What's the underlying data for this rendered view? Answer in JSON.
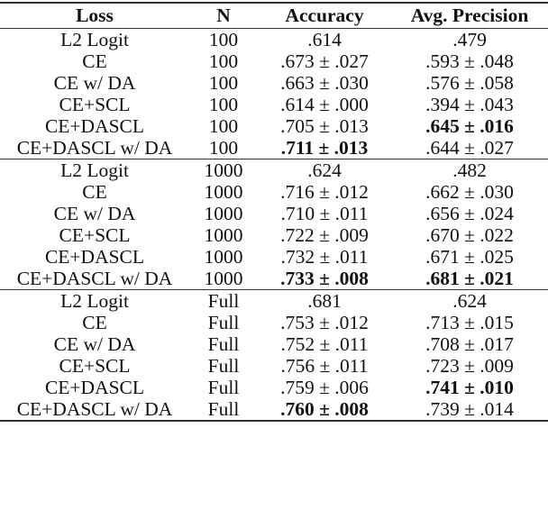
{
  "table": {
    "headers": [
      "Loss",
      "N",
      "Accuracy",
      "Avg. Precision"
    ],
    "sections": [
      {
        "rows": [
          {
            "loss": "L2 Logit",
            "n": "100",
            "acc": ".614",
            "ap": ".479",
            "acc_bold": false,
            "ap_bold": false
          },
          {
            "loss": "CE",
            "n": "100",
            "acc": ".673 ± .027",
            "ap": ".593 ± .048",
            "acc_bold": false,
            "ap_bold": false
          },
          {
            "loss": "CE w/ DA",
            "n": "100",
            "acc": ".663 ± .030",
            "ap": ".576 ± .058",
            "acc_bold": false,
            "ap_bold": false
          },
          {
            "loss": "CE+SCL",
            "n": "100",
            "acc": ".614 ± .000",
            "ap": ".394 ± .043",
            "acc_bold": false,
            "ap_bold": false
          },
          {
            "loss": "CE+DASCL",
            "n": "100",
            "acc": ".705 ± .013",
            "ap": ".645 ± .016",
            "acc_bold": false,
            "ap_bold": true
          },
          {
            "loss": "CE+DASCL w/ DA",
            "n": "100",
            "acc": ".711 ± .013",
            "ap": ".644 ± .027",
            "acc_bold": true,
            "ap_bold": false
          }
        ]
      },
      {
        "rows": [
          {
            "loss": "L2 Logit",
            "n": "1000",
            "acc": ".624",
            "ap": ".482",
            "acc_bold": false,
            "ap_bold": false
          },
          {
            "loss": "CE",
            "n": "1000",
            "acc": ".716 ± .012",
            "ap": ".662 ± .030",
            "acc_bold": false,
            "ap_bold": false
          },
          {
            "loss": "CE w/ DA",
            "n": "1000",
            "acc": ".710 ± .011",
            "ap": ".656 ± .024",
            "acc_bold": false,
            "ap_bold": false
          },
          {
            "loss": "CE+SCL",
            "n": "1000",
            "acc": ".722 ± .009",
            "ap": ".670 ± .022",
            "acc_bold": false,
            "ap_bold": false
          },
          {
            "loss": "CE+DASCL",
            "n": "1000",
            "acc": ".732 ± .011",
            "ap": ".671 ± .025",
            "acc_bold": false,
            "ap_bold": false
          },
          {
            "loss": "CE+DASCL w/ DA",
            "n": "1000",
            "acc": ".733 ± .008",
            "ap": ".681 ± .021",
            "acc_bold": true,
            "ap_bold": true
          }
        ]
      },
      {
        "rows": [
          {
            "loss": "L2 Logit",
            "n": "Full",
            "acc": ".681",
            "ap": ".624",
            "acc_bold": false,
            "ap_bold": false
          },
          {
            "loss": "CE",
            "n": "Full",
            "acc": ".753 ± .012",
            "ap": ".713 ± .015",
            "acc_bold": false,
            "ap_bold": false
          },
          {
            "loss": "CE w/ DA",
            "n": "Full",
            "acc": ".752 ± .011",
            "ap": ".708 ± .017",
            "acc_bold": false,
            "ap_bold": false
          },
          {
            "loss": "CE+SCL",
            "n": "Full",
            "acc": ".756 ± .011",
            "ap": ".723 ± .009",
            "acc_bold": false,
            "ap_bold": false
          },
          {
            "loss": "CE+DASCL",
            "n": "Full",
            "acc": ".759 ± .006",
            "ap": ".741 ± .010",
            "acc_bold": false,
            "ap_bold": true
          },
          {
            "loss": "CE+DASCL w/ DA",
            "n": "Full",
            "acc": ".760 ± .008",
            "ap": ".739 ± .014",
            "acc_bold": true,
            "ap_bold": false
          }
        ]
      }
    ]
  }
}
